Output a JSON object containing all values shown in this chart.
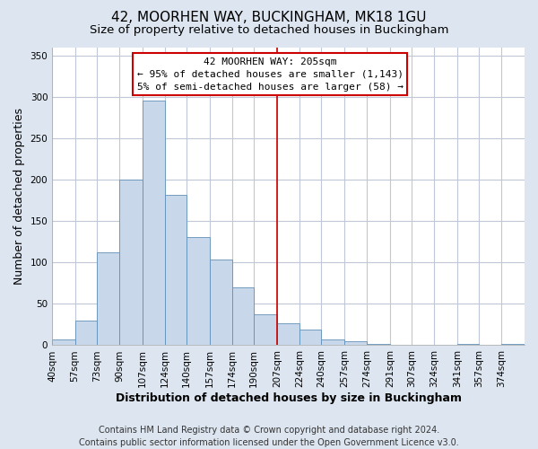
{
  "title": "42, MOORHEN WAY, BUCKINGHAM, MK18 1GU",
  "subtitle": "Size of property relative to detached houses in Buckingham",
  "xlabel": "Distribution of detached houses by size in Buckingham",
  "ylabel": "Number of detached properties",
  "footer_line1": "Contains HM Land Registry data © Crown copyright and database right 2024.",
  "footer_line2": "Contains public sector information licensed under the Open Government Licence v3.0.",
  "bin_labels": [
    "40sqm",
    "57sqm",
    "73sqm",
    "90sqm",
    "107sqm",
    "124sqm",
    "140sqm",
    "157sqm",
    "174sqm",
    "190sqm",
    "207sqm",
    "224sqm",
    "240sqm",
    "257sqm",
    "274sqm",
    "291sqm",
    "307sqm",
    "324sqm",
    "341sqm",
    "357sqm",
    "374sqm"
  ],
  "bin_edges": [
    40,
    57,
    73,
    90,
    107,
    124,
    140,
    157,
    174,
    190,
    207,
    224,
    240,
    257,
    274,
    291,
    307,
    324,
    341,
    357,
    374,
    391
  ],
  "bar_heights": [
    7,
    30,
    112,
    200,
    295,
    182,
    131,
    103,
    70,
    37,
    27,
    19,
    7,
    5,
    2,
    1,
    0,
    0,
    2,
    0,
    2
  ],
  "bar_color": "#c8d8ea",
  "bar_edge_color": "#6090b8",
  "reference_line_x": 207,
  "reference_line_color": "#cc0000",
  "annotation_title": "42 MOORHEN WAY: 205sqm",
  "annotation_line1": "← 95% of detached houses are smaller (1,143)",
  "annotation_line2": "5% of semi-detached houses are larger (58) →",
  "annotation_box_color": "#cc0000",
  "annotation_bg": "white",
  "ylim": [
    0,
    360
  ],
  "yticks": [
    0,
    50,
    100,
    150,
    200,
    250,
    300,
    350
  ],
  "plot_bg_color": "white",
  "fig_bg_color": "#dde6f0",
  "grid_color": "#c0c8d8",
  "title_fontsize": 11,
  "subtitle_fontsize": 9.5,
  "axis_label_fontsize": 9,
  "tick_fontsize": 7.5,
  "footer_fontsize": 7
}
